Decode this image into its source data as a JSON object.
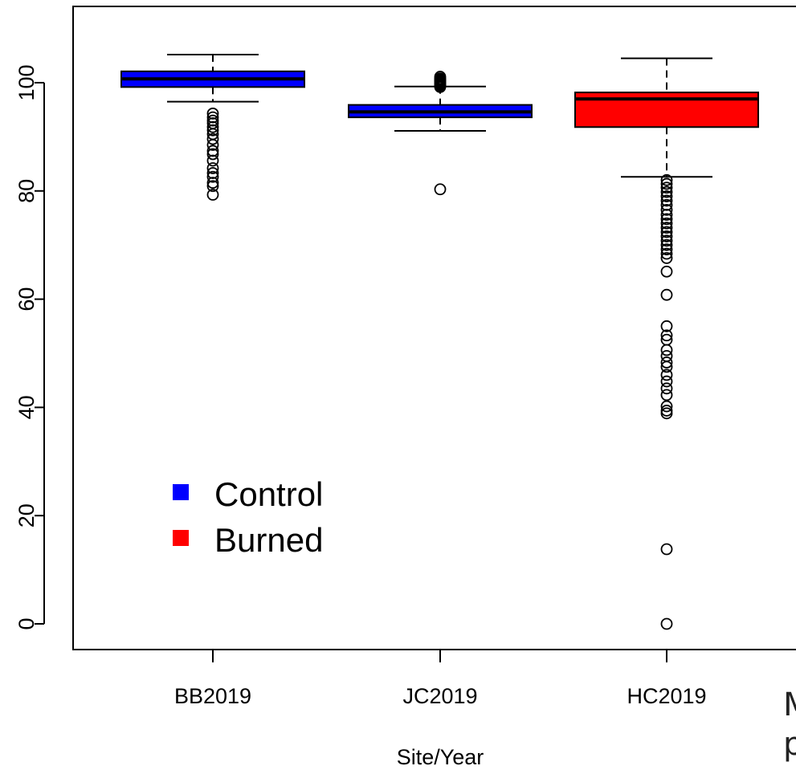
{
  "chart_data": {
    "type": "boxplot",
    "title": "",
    "xlabel": "Site/Year",
    "ylabel": "",
    "ylim": [
      -4,
      112
    ],
    "yticks": [
      0,
      20,
      40,
      60,
      80,
      100
    ],
    "grid": false,
    "legend": {
      "placement": "bottom-left",
      "entries": [
        {
          "label": "Control",
          "color": "#0000ff"
        },
        {
          "label": "Burned",
          "color": "#ff0000"
        }
      ]
    },
    "categories": [
      "BB2019",
      "JC2019",
      "HC2019"
    ],
    "boxes": [
      {
        "category": "BB2019",
        "group": "Control",
        "color": "#0000ff",
        "whisker_low": 96.5,
        "q1": 99.2,
        "median": 100.7,
        "q3": 102.1,
        "whisker_high": 105.2,
        "outliers": [
          94.3,
          93.6,
          93.0,
          92.5,
          91.8,
          91.2,
          90.5,
          89.6,
          88.5,
          87.4,
          86.8,
          85.6,
          84.2,
          83.3,
          82.6,
          81.5,
          80.9,
          79.3
        ]
      },
      {
        "category": "JC2019",
        "group": "Control",
        "color": "#0000ff",
        "whisker_low": 91.1,
        "q1": 93.6,
        "median": 94.6,
        "q3": 95.9,
        "whisker_high": 99.3,
        "outliers": [
          101.1,
          100.8,
          100.6,
          100.4,
          100.2,
          100.0,
          99.8,
          99.6,
          99.4,
          99.2,
          80.3
        ]
      },
      {
        "category": "HC2019",
        "group": "Burned",
        "color": "#ff0000",
        "whisker_low": 82.6,
        "q1": 91.8,
        "median": 97.0,
        "q3": 98.2,
        "whisker_high": 104.5,
        "outliers": [
          82.0,
          81.3,
          80.6,
          79.8,
          79.0,
          78.2,
          77.4,
          76.5,
          75.6,
          74.8,
          74.0,
          73.2,
          72.4,
          71.6,
          70.8,
          70.0,
          69.2,
          68.4,
          67.6,
          65.1,
          60.8,
          55.0,
          53.3,
          52.5,
          50.6,
          49.5,
          48.3,
          47.5,
          46.0,
          44.8,
          43.5,
          42.3,
          40.2,
          39.4,
          38.9,
          13.8,
          0.0
        ]
      }
    ]
  },
  "cut_text": {
    "line1": "M",
    "line2": "p"
  }
}
